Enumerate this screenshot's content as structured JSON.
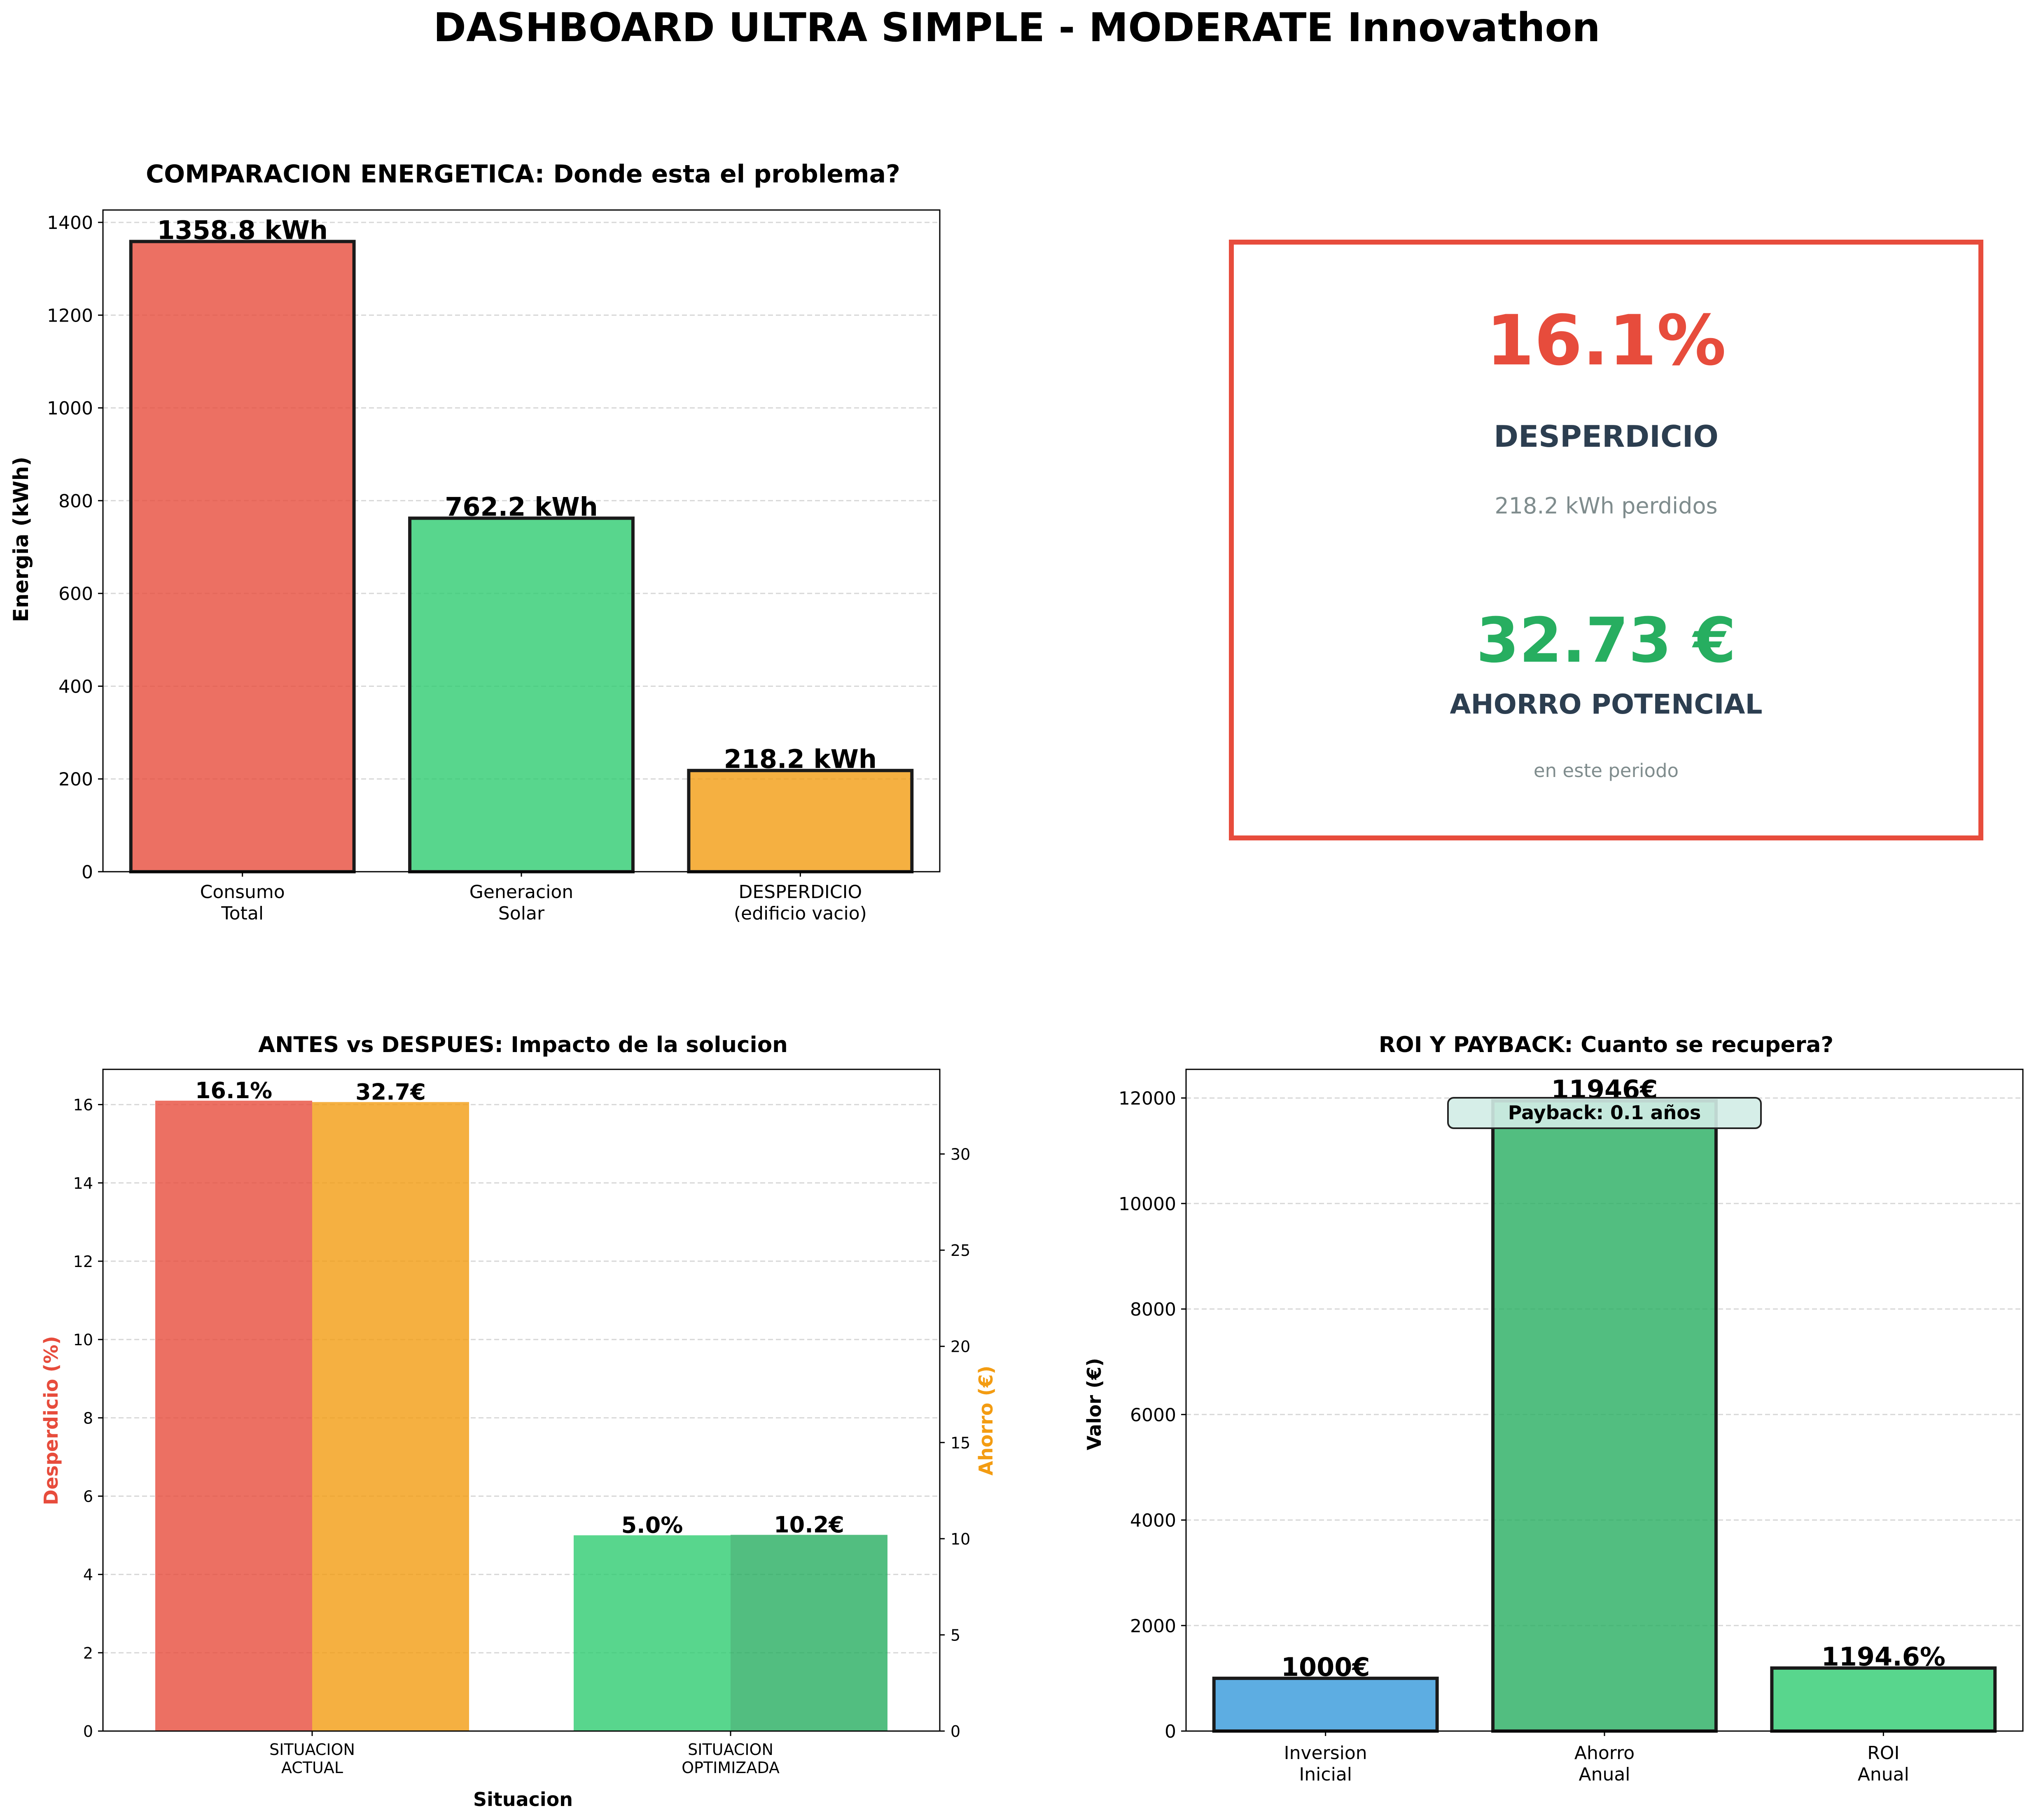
{
  "figure_title": "DASHBOARD ULTRA SIMPLE - MODERATE Innovathon",
  "colors": {
    "red": "#e74c3c",
    "green": "#2ecc71",
    "dark_green": "#27ae60",
    "orange": "#f39c12",
    "blue": "#3498db",
    "dark_text": "#2c3e50",
    "gray_text": "#7f8c8d",
    "payback_box": "#d1ece6"
  },
  "kpi": {
    "waste_pct": "16.1%",
    "waste_label": "DESPERDICIO",
    "waste_detail": "218.2 kWh perdidos",
    "savings": "32.73 €",
    "savings_label": "AHORRO POTENCIAL",
    "savings_detail": "en este periodo"
  },
  "chart_data": [
    {
      "type": "bar",
      "title": "COMPARACION ENERGETICA: Donde esta el problema?",
      "xlabel": "",
      "ylabel": "Energia (kWh)",
      "categories": [
        [
          "Consumo",
          "Total"
        ],
        [
          "Generacion",
          "Solar"
        ],
        [
          "DESPERDICIO",
          "(edificio vacio)"
        ]
      ],
      "values": [
        1358.8,
        762.2,
        218.2
      ],
      "value_labels": [
        "1358.8 kWh",
        "762.2 kWh",
        "218.2 kWh"
      ],
      "bar_colors": [
        "#e74c3c",
        "#2ecc71",
        "#f39c12"
      ],
      "ylim": [
        0,
        1426.7
      ],
      "yticks": [
        0,
        200,
        400,
        600,
        800,
        1000,
        1200,
        1400
      ],
      "grid": true
    },
    {
      "type": "bar",
      "title": "ANTES vs DESPUES: Impacto de la solucion",
      "xlabel": "Situacion",
      "ylabel": "Desperdicio (%)",
      "ylabel_right": "Ahorro (€)",
      "categories": [
        [
          "SITUACION",
          "ACTUAL"
        ],
        [
          "SITUACION",
          "OPTIMIZADA"
        ]
      ],
      "series": [
        {
          "values": [
            16.1,
            5.0
          ],
          "labels": [
            "16.1%",
            "5.0%"
          ],
          "colors": [
            "#e74c3c",
            "#2ecc71"
          ],
          "axis": "left"
        },
        {
          "values": [
            32.7,
            10.2
          ],
          "labels": [
            "32.7€",
            "10.2€"
          ],
          "colors": [
            "#f39c12",
            "#27ae60"
          ],
          "axis": "right"
        }
      ],
      "ylim": [
        0,
        16.9
      ],
      "ylim_right": [
        0,
        34.4
      ],
      "yticks": [
        0,
        2,
        4,
        6,
        8,
        10,
        12,
        14,
        16
      ],
      "yticks_right": [
        0,
        5,
        10,
        15,
        20,
        25,
        30
      ],
      "grid": true
    },
    {
      "type": "bar",
      "title": "ROI Y PAYBACK: Cuanto se recupera?",
      "xlabel": "",
      "ylabel": "Valor (€)",
      "categories": [
        [
          "Inversion",
          "Inicial"
        ],
        [
          "Ahorro",
          "Anual"
        ],
        [
          "ROI",
          "Anual"
        ]
      ],
      "values": [
        1000,
        11946,
        1194.6
      ],
      "value_labels": [
        "1000€",
        "11946€",
        "1194.6%"
      ],
      "bar_colors": [
        "#3498db",
        "#27ae60",
        "#2ecc71"
      ],
      "ylim": [
        0,
        12543
      ],
      "yticks": [
        0,
        2000,
        4000,
        6000,
        8000,
        10000,
        12000
      ],
      "annotation": "Payback: 0.1 años",
      "grid": true
    }
  ]
}
